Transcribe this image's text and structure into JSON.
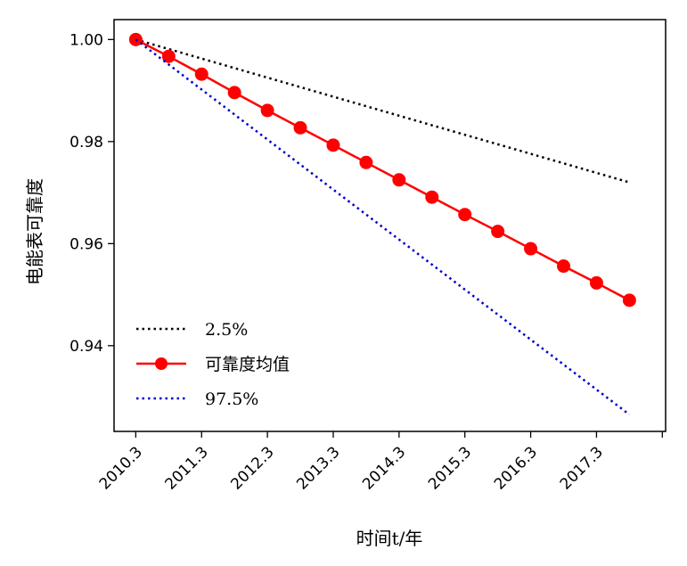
{
  "chart_data": {
    "type": "line",
    "xlabel": "时间t/年",
    "ylabel": "电能表可靠度",
    "x_tick_labels": [
      "2010.3",
      "2011.3",
      "2012.3",
      "2013.3",
      "2014.3",
      "2015.3",
      "2016.3",
      "2017.3"
    ],
    "y_tick_labels": [
      "1.00",
      "0.98",
      "0.96",
      "0.94"
    ],
    "y_ticks": [
      1.0,
      0.98,
      0.96,
      0.94
    ],
    "xlim": [
      2009.97,
      2018.35
    ],
    "ylim": [
      0.9232,
      1.0039
    ],
    "grid": false,
    "legend_position": "lower-left",
    "series": [
      {
        "name": "2.5%",
        "style": "dotted",
        "color": "#000000",
        "x": [
          2010.3,
          2017.8
        ],
        "y": [
          1.0,
          0.972
        ]
      },
      {
        "name": "可靠度均值",
        "style": "solid-marker",
        "color": "#ff0000",
        "x": [
          2010.3,
          2010.8,
          2011.3,
          2011.8,
          2012.3,
          2012.8,
          2013.3,
          2013.8,
          2014.3,
          2014.8,
          2015.3,
          2015.8,
          2016.3,
          2016.8,
          2017.3,
          2017.8
        ],
        "y": [
          1.0,
          0.9967,
          0.9932,
          0.9896,
          0.9861,
          0.9827,
          0.9793,
          0.9759,
          0.9725,
          0.9691,
          0.9657,
          0.9624,
          0.959,
          0.9556,
          0.9523,
          0.9489
        ]
      },
      {
        "name": "97.5%",
        "style": "dotted",
        "color": "#0000cc",
        "x": [
          2010.3,
          2017.8
        ],
        "y": [
          1.0,
          0.9265
        ]
      }
    ]
  }
}
